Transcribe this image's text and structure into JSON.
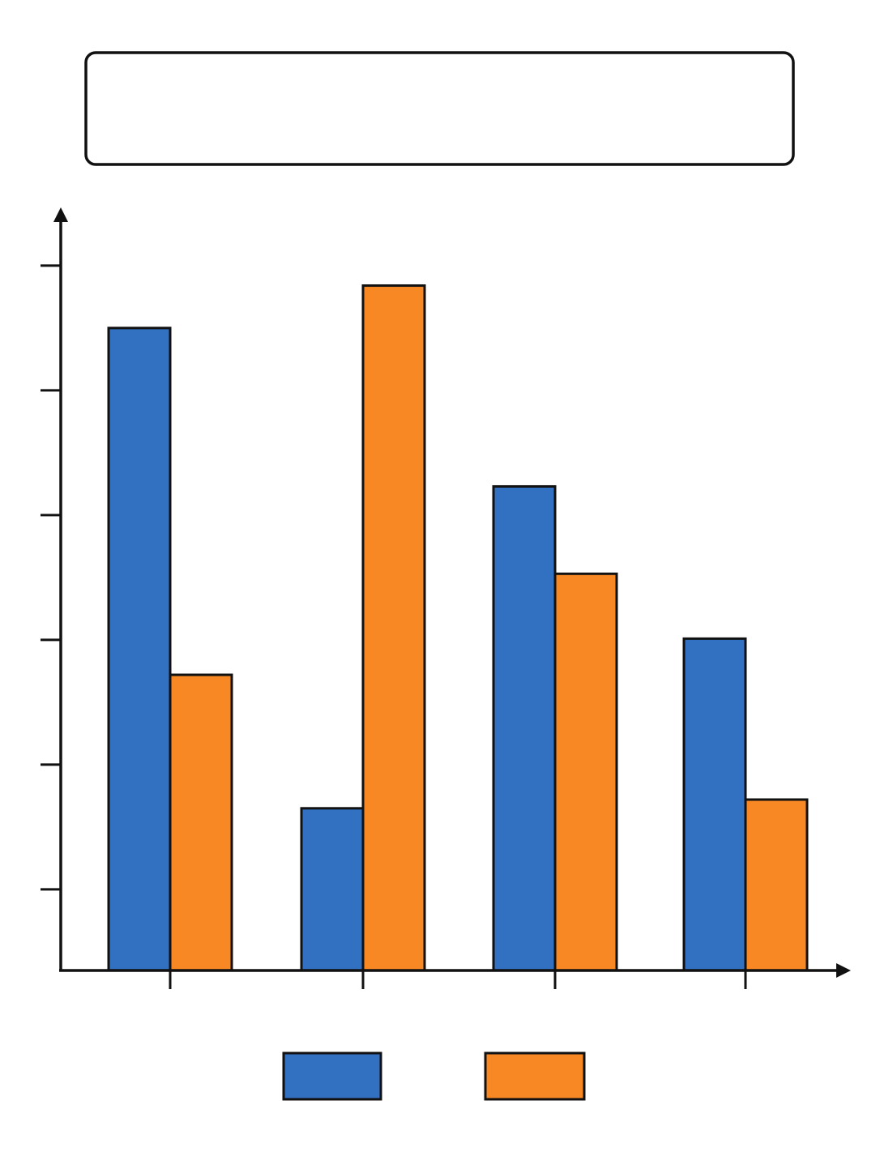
{
  "chart_data": {
    "type": "bar",
    "title": "",
    "xlabel": "",
    "ylabel": "",
    "categories": [
      "",
      "",
      "",
      ""
    ],
    "ylim": [
      0,
      5.7
    ],
    "y_ticks": [
      0.65,
      1.65,
      2.65,
      3.65,
      4.65,
      5.65
    ],
    "series": [
      {
        "color": "#3270c2",
        "values": [
          5.15,
          1.3,
          3.88,
          2.66
        ]
      },
      {
        "color": "#f78823",
        "values": [
          2.37,
          5.49,
          3.18,
          1.37
        ]
      }
    ],
    "legend": {
      "position": "bottom-center"
    },
    "grid": false
  }
}
